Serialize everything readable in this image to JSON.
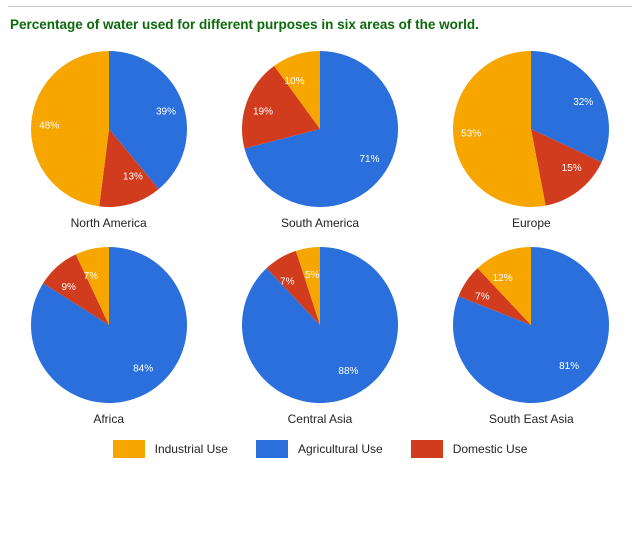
{
  "title": "Percentage of water used for different purposes in six areas of the world.",
  "colors": {
    "industrial": "#f7a600",
    "agricultural": "#2a6fdb",
    "domestic": "#d23c1e",
    "label_text": "#ffffff",
    "caption_text": "#222222",
    "title_text": "#0b6a0b",
    "rule": "#c7c7c7",
    "background": "#ffffff"
  },
  "legend": {
    "industrial": "Industrial Use",
    "agricultural": "Agricultural Use",
    "domestic": "Domestic Use"
  },
  "label_fontsize": 10,
  "caption_fontsize": 12,
  "title_fontsize": 13.5,
  "pie_radius": 78,
  "label_radius": 50,
  "start_angle_deg": -90,
  "slice_order": [
    "agricultural",
    "domestic",
    "industrial"
  ],
  "charts": [
    {
      "name": "North America",
      "values": {
        "industrial": 48,
        "agricultural": 39,
        "domestic": 13
      }
    },
    {
      "name": "South America",
      "values": {
        "industrial": 10,
        "agricultural": 71,
        "domestic": 19
      }
    },
    {
      "name": "Europe",
      "values": {
        "industrial": 53,
        "agricultural": 32,
        "domestic": 15
      }
    },
    {
      "name": "Africa",
      "values": {
        "industrial": 7,
        "agricultural": 84,
        "domestic": 9
      }
    },
    {
      "name": "Central Asia",
      "values": {
        "industrial": 5,
        "agricultural": 88,
        "domestic": 7
      }
    },
    {
      "name": "South East Asia",
      "values": {
        "industrial": 12,
        "agricultural": 81,
        "domestic": 7
      }
    }
  ]
}
